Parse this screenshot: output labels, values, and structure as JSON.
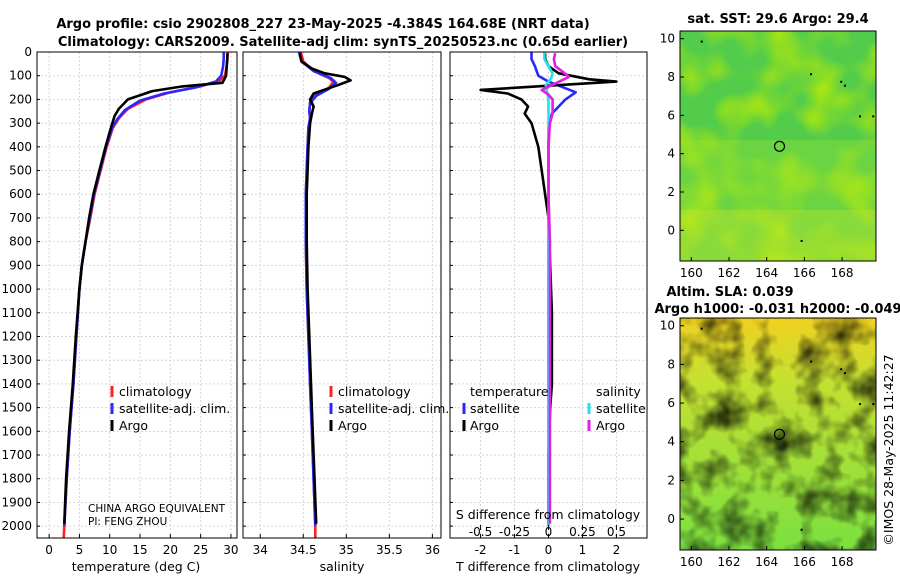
{
  "titles": {
    "line1": "Argo profile: csio 2902808_227 23-May-2025 -4.384S 164.68E (NRT data)",
    "line2": "Climatology: CARS2009. Satellite-adj clim: synTS_20250523.nc (0.65d earlier)",
    "sst": "sat. SST: 29.6 Argo: 29.4",
    "sla1": "Altim. SLA: 0.039",
    "sla2": "Argo h1000: -0.031 h2000: -0.049",
    "copyright": "©IMOS 28-May-2025 11:42:27"
  },
  "colors": {
    "climatology": "#ff2020",
    "satellite": "#2828ff",
    "argo": "#000000",
    "sal_satellite": "#22e0f0",
    "sal_argo": "#e020e0"
  },
  "notes": {
    "line1": "CHINA ARGO EQUIVALENT",
    "line2": "PI: FENG ZHOU"
  },
  "legend": {
    "climatology": "climatology",
    "satellite": "satellite-adj. clim.",
    "argo": "Argo",
    "diff_temp_head": "temperature",
    "diff_sal_head": "salinity",
    "diff_satellite": "satellite",
    "diff_argo": "Argo"
  },
  "chart_data": [
    {
      "type": "line",
      "name": "temperature profile",
      "xlabel": "temperature (deg C)",
      "ylabel": "",
      "xlim": [
        -2,
        31
      ],
      "ylim": [
        2050,
        0
      ],
      "grid": true,
      "xticks": [
        0,
        5,
        10,
        15,
        20,
        25,
        30
      ],
      "yticks": [
        0,
        100,
        200,
        300,
        400,
        500,
        600,
        700,
        800,
        900,
        1000,
        1100,
        1200,
        1300,
        1400,
        1500,
        1600,
        1700,
        1800,
        1900,
        2000
      ],
      "series": [
        {
          "name": "climatology",
          "points": [
            [
              29.5,
              0
            ],
            [
              29.4,
              30
            ],
            [
              29.3,
              60
            ],
            [
              29.0,
              100
            ],
            [
              28.2,
              120
            ],
            [
              25,
              145
            ],
            [
              20,
              170
            ],
            [
              16,
              200
            ],
            [
              13,
              240
            ],
            [
              11.5,
              280
            ],
            [
              10.5,
              320
            ],
            [
              9.5,
              400
            ],
            [
              8.5,
              500
            ],
            [
              7.5,
              600
            ],
            [
              6.8,
              700
            ],
            [
              6.0,
              800
            ],
            [
              5.4,
              900
            ],
            [
              5.0,
              1000
            ],
            [
              4.5,
              1200
            ],
            [
              4.0,
              1400
            ],
            [
              3.4,
              1600
            ],
            [
              2.9,
              1800
            ],
            [
              2.5,
              2000
            ],
            [
              2.4,
              2050
            ]
          ]
        },
        {
          "name": "satellite-adj. clim.",
          "points": [
            [
              28.8,
              0
            ],
            [
              28.8,
              30
            ],
            [
              28.7,
              60
            ],
            [
              28.4,
              100
            ],
            [
              27.5,
              125
            ],
            [
              24,
              150
            ],
            [
              19,
              175
            ],
            [
              15,
              205
            ],
            [
              12.5,
              245
            ],
            [
              11.2,
              285
            ],
            [
              10.4,
              320
            ],
            [
              9.4,
              400
            ],
            [
              8.4,
              500
            ],
            [
              7.4,
              600
            ],
            [
              6.7,
              700
            ],
            [
              6.0,
              800
            ],
            [
              5.4,
              900
            ],
            [
              5.0,
              1000
            ],
            [
              4.5,
              1200
            ],
            [
              4.0,
              1400
            ],
            [
              3.4,
              1600
            ],
            [
              2.9,
              1800
            ],
            [
              2.5,
              2000
            ]
          ]
        },
        {
          "name": "Argo",
          "points": [
            [
              29.4,
              5
            ],
            [
              29.4,
              30
            ],
            [
              29.3,
              60
            ],
            [
              29.2,
              100
            ],
            [
              28.6,
              130
            ],
            [
              22,
              145
            ],
            [
              17,
              165
            ],
            [
              13,
              200
            ],
            [
              11.5,
              240
            ],
            [
              10.8,
              270
            ],
            [
              10.2,
              320
            ],
            [
              9.3,
              400
            ],
            [
              8.3,
              500
            ],
            [
              7.3,
              600
            ],
            [
              6.6,
              700
            ],
            [
              6.0,
              800
            ],
            [
              5.4,
              900
            ],
            [
              5.0,
              1000
            ],
            [
              4.4,
              1200
            ],
            [
              3.9,
              1400
            ],
            [
              3.3,
              1600
            ],
            [
              2.8,
              1800
            ],
            [
              2.5,
              1990
            ]
          ]
        }
      ]
    },
    {
      "type": "line",
      "name": "salinity profile",
      "xlabel": "salinity",
      "ylabel": "",
      "xlim": [
        33.8,
        36.1
      ],
      "ylim": [
        2050,
        0
      ],
      "grid": true,
      "xticks": [
        34,
        34.5,
        35,
        35.5,
        36
      ],
      "series": [
        {
          "name": "climatology",
          "points": [
            [
              34.47,
              0
            ],
            [
              34.5,
              40
            ],
            [
              34.62,
              80
            ],
            [
              34.8,
              110
            ],
            [
              34.85,
              125
            ],
            [
              34.8,
              150
            ],
            [
              34.65,
              180
            ],
            [
              34.58,
              210
            ],
            [
              34.57,
              250
            ],
            [
              34.58,
              280
            ],
            [
              34.56,
              320
            ],
            [
              34.55,
              400
            ],
            [
              34.54,
              500
            ],
            [
              34.53,
              600
            ],
            [
              34.53,
              700
            ],
            [
              34.53,
              800
            ],
            [
              34.54,
              1000
            ],
            [
              34.56,
              1200
            ],
            [
              34.58,
              1400
            ],
            [
              34.6,
              1600
            ],
            [
              34.62,
              1800
            ],
            [
              34.64,
              2000
            ],
            [
              34.64,
              2050
            ]
          ]
        },
        {
          "name": "satellite-adj. clim.",
          "points": [
            [
              34.45,
              0
            ],
            [
              34.48,
              40
            ],
            [
              34.62,
              80
            ],
            [
              34.82,
              110
            ],
            [
              34.88,
              130
            ],
            [
              34.8,
              155
            ],
            [
              34.65,
              185
            ],
            [
              34.58,
              215
            ],
            [
              34.57,
              250
            ],
            [
              34.58,
              280
            ],
            [
              34.56,
              320
            ],
            [
              34.55,
              400
            ],
            [
              34.54,
              500
            ],
            [
              34.53,
              600
            ],
            [
              34.53,
              700
            ],
            [
              34.53,
              800
            ],
            [
              34.54,
              1000
            ],
            [
              34.56,
              1200
            ],
            [
              34.58,
              1400
            ],
            [
              34.6,
              1600
            ],
            [
              34.62,
              1800
            ],
            [
              34.64,
              2000
            ]
          ]
        },
        {
          "name": "Argo",
          "points": [
            [
              34.46,
              5
            ],
            [
              34.48,
              40
            ],
            [
              34.6,
              70
            ],
            [
              34.75,
              90
            ],
            [
              34.98,
              105
            ],
            [
              35.05,
              120
            ],
            [
              34.9,
              140
            ],
            [
              34.62,
              175
            ],
            [
              34.58,
              200
            ],
            [
              34.62,
              230
            ],
            [
              34.6,
              260
            ],
            [
              34.58,
              300
            ],
            [
              34.56,
              400
            ],
            [
              34.55,
              500
            ],
            [
              34.54,
              600
            ],
            [
              34.54,
              700
            ],
            [
              34.54,
              800
            ],
            [
              34.55,
              1000
            ],
            [
              34.57,
              1200
            ],
            [
              34.59,
              1400
            ],
            [
              34.61,
              1600
            ],
            [
              34.63,
              1800
            ],
            [
              34.65,
              1990
            ]
          ]
        }
      ]
    },
    {
      "type": "line",
      "name": "difference from climatology",
      "xlabel": "T difference from climatology",
      "x2label": "S difference from climatology",
      "xlim": [
        -2.9,
        2.9
      ],
      "x2lim": [
        -0.725,
        0.725
      ],
      "ylim": [
        2050,
        0
      ],
      "grid": true,
      "xticks": [
        -2,
        -1,
        0,
        1,
        2
      ],
      "x2ticks": [
        -0.5,
        -0.25,
        0,
        0.25,
        0.5
      ],
      "x2ticklabels": [
        "-0.5",
        "-0.25",
        "0",
        "0.25",
        "0.5"
      ],
      "series": [
        {
          "name": "temperature satellite",
          "axis": "T",
          "points": [
            [
              -0.5,
              0
            ],
            [
              -0.5,
              30
            ],
            [
              -0.4,
              60
            ],
            [
              -0.3,
              100
            ],
            [
              0,
              125
            ],
            [
              0.8,
              170
            ],
            [
              0.5,
              200
            ],
            [
              0.1,
              260
            ],
            [
              0,
              320
            ],
            [
              0,
              500
            ],
            [
              0,
              800
            ],
            [
              0,
              1200
            ],
            [
              0,
              1600
            ],
            [
              0,
              2000
            ]
          ]
        },
        {
          "name": "temperature Argo",
          "axis": "T",
          "points": [
            [
              -0.1,
              5
            ],
            [
              -0.1,
              30
            ],
            [
              0,
              60
            ],
            [
              0.3,
              90
            ],
            [
              1.2,
              115
            ],
            [
              2.0,
              125
            ],
            [
              -2.0,
              160
            ],
            [
              -1.2,
              175
            ],
            [
              -0.8,
              200
            ],
            [
              -0.6,
              230
            ],
            [
              -0.7,
              260
            ],
            [
              -0.5,
              300
            ],
            [
              -0.3,
              400
            ],
            [
              -0.2,
              500
            ],
            [
              -0.1,
              600
            ],
            [
              0,
              700
            ],
            [
              0.05,
              900
            ],
            [
              0.1,
              1100
            ],
            [
              0.1,
              1400
            ],
            [
              0.05,
              1500
            ],
            [
              0,
              1700
            ],
            [
              0,
              1990
            ]
          ]
        },
        {
          "name": "salinity satellite",
          "axis": "S",
          "points": [
            [
              -0.03,
              0
            ],
            [
              -0.03,
              30
            ],
            [
              0,
              60
            ],
            [
              0.03,
              90
            ],
            [
              0.02,
              110
            ],
            [
              -0.02,
              140
            ],
            [
              -0.01,
              170
            ],
            [
              0,
              200
            ],
            [
              0,
              400
            ],
            [
              0,
              800
            ],
            [
              0,
              1200
            ],
            [
              0,
              1600
            ],
            [
              0,
              2000
            ]
          ]
        },
        {
          "name": "salinity Argo",
          "axis": "S",
          "points": [
            [
              0.05,
              5
            ],
            [
              0.04,
              30
            ],
            [
              0.05,
              60
            ],
            [
              0.12,
              90
            ],
            [
              0.15,
              105
            ],
            [
              0.06,
              130
            ],
            [
              -0.05,
              160
            ],
            [
              0,
              180
            ],
            [
              0.03,
              200
            ],
            [
              0.03,
              260
            ],
            [
              0.01,
              300
            ],
            [
              0,
              400
            ],
            [
              0,
              600
            ],
            [
              0.01,
              800
            ],
            [
              0.01,
              1000
            ],
            [
              0.01,
              1200
            ],
            [
              0.01,
              1400
            ],
            [
              0.01,
              1600
            ],
            [
              0.01,
              1800
            ],
            [
              0.01,
              1990
            ]
          ]
        }
      ]
    },
    {
      "type": "heatmap",
      "name": "satellite SST map",
      "xlim": [
        159.4,
        169.8
      ],
      "ylim": [
        -1.6,
        10.4
      ],
      "xticks": [
        160,
        162,
        164,
        166,
        168
      ],
      "yticks": [
        0,
        2,
        4,
        6,
        8,
        10
      ],
      "marker": {
        "lon": 164.68,
        "lat": -4.384,
        "plot_lat": 4.384
      }
    },
    {
      "type": "heatmap",
      "name": "altimetry SLA map",
      "xlim": [
        159.4,
        169.8
      ],
      "ylim": [
        -1.6,
        10.4
      ],
      "xticks": [
        160,
        162,
        164,
        166,
        168
      ],
      "yticks": [
        0,
        2,
        4,
        6,
        8,
        10
      ],
      "marker": {
        "lon": 164.68,
        "lat": -4.384,
        "plot_lat": 4.384
      }
    }
  ]
}
